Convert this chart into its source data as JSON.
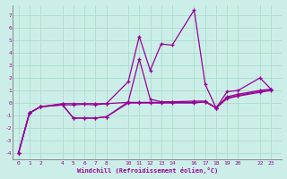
{
  "xlabel": "Windchill (Refroidissement éolien,°C)",
  "bg_color": "#cceee8",
  "grid_color": "#aaddcc",
  "line_color": "#990099",
  "x_ticks": [
    0,
    1,
    2,
    4,
    5,
    6,
    7,
    8,
    10,
    11,
    12,
    13,
    14,
    16,
    17,
    18,
    19,
    20,
    22,
    23
  ],
  "ylim": [
    -4.5,
    7.8
  ],
  "xlim": [
    -0.5,
    24.0
  ],
  "yticks": [
    -4,
    -3,
    -2,
    -1,
    0,
    1,
    2,
    3,
    4,
    5,
    6,
    7
  ],
  "series": [
    {
      "x": [
        0,
        1,
        2,
        4,
        5,
        6,
        7,
        8,
        10,
        11,
        12,
        13,
        14,
        16,
        17,
        18,
        19,
        20,
        22,
        23
      ],
      "y": [
        -4.0,
        -0.8,
        -0.3,
        -0.15,
        -0.15,
        -0.1,
        -0.15,
        -0.05,
        1.7,
        5.3,
        2.6,
        4.7,
        4.6,
        7.4,
        1.5,
        -0.4,
        0.9,
        1.0,
        2.0,
        1.1
      ]
    },
    {
      "x": [
        0,
        1,
        2,
        4,
        5,
        6,
        7,
        8,
        10,
        11,
        12,
        13,
        14,
        16,
        17,
        18,
        19,
        20,
        22,
        23
      ],
      "y": [
        -4.0,
        -0.8,
        -0.3,
        -0.15,
        -1.2,
        -1.2,
        -1.2,
        -1.1,
        0.1,
        3.5,
        0.3,
        0.1,
        0.1,
        0.15,
        0.15,
        -0.4,
        0.5,
        0.7,
        1.0,
        1.1
      ]
    },
    {
      "x": [
        0,
        1,
        2,
        4,
        5,
        6,
        7,
        8,
        10,
        11,
        12,
        13,
        14,
        16,
        17,
        18,
        19,
        20,
        22,
        23
      ],
      "y": [
        -4.0,
        -0.8,
        -0.3,
        -0.1,
        -1.2,
        -1.2,
        -1.2,
        -1.1,
        0.0,
        0.0,
        0.0,
        0.0,
        0.0,
        0.0,
        0.1,
        -0.4,
        0.35,
        0.55,
        0.85,
        1.0
      ]
    },
    {
      "x": [
        0,
        1,
        2,
        4,
        5,
        6,
        7,
        8,
        10,
        11,
        12,
        13,
        14,
        16,
        17,
        18,
        19,
        20,
        22,
        23
      ],
      "y": [
        -4.0,
        -0.8,
        -0.3,
        -0.05,
        -0.05,
        -0.05,
        -0.05,
        -0.05,
        0.05,
        0.05,
        0.05,
        0.05,
        0.05,
        0.05,
        0.1,
        -0.35,
        0.4,
        0.6,
        0.95,
        1.05
      ]
    }
  ]
}
